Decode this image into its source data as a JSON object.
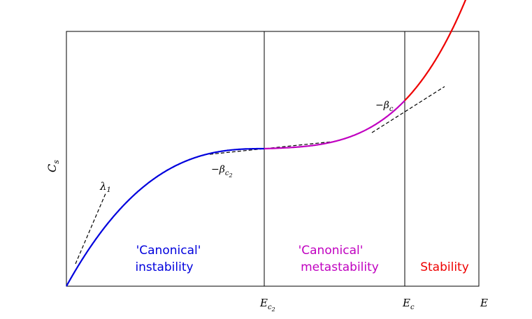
{
  "axes": {
    "ylabel": "C",
    "ylabel_sub": "s",
    "xlabel": "E",
    "ticks": [
      {
        "label": "E",
        "sub": "c",
        "subsub": "2"
      },
      {
        "label": "E",
        "sub": "c",
        "subsub": ""
      }
    ]
  },
  "annotations": {
    "lambda": {
      "symbol": "λ",
      "sub": "1"
    },
    "beta_c2": {
      "prefix": "−β",
      "sub": "c",
      "subsub": "2"
    },
    "beta_c": {
      "prefix": "−β",
      "sub": "c"
    }
  },
  "regions": {
    "instability": {
      "line1": "'Canonical'",
      "line2": "instability",
      "color": "#0000dd"
    },
    "metastability": {
      "line1": "'Canonical'",
      "line2": "metastability",
      "color": "#c000c0"
    },
    "stability": {
      "line1": "Stability",
      "color": "#ee0000"
    }
  }
}
